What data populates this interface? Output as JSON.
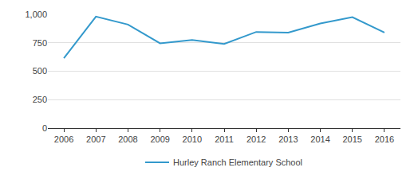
{
  "chart_data": {
    "type": "line",
    "categories": [
      "2006",
      "2007",
      "2008",
      "2009",
      "2010",
      "2011",
      "2012",
      "2013",
      "2014",
      "2015",
      "2016"
    ],
    "series": [
      {
        "name": "Hurley Ranch Elementary School",
        "color": "#3399cc",
        "values": [
          615,
          980,
          910,
          745,
          775,
          740,
          845,
          840,
          920,
          975,
          840
        ]
      }
    ],
    "ylim": [
      0,
      1000
    ],
    "yticks": [
      0,
      250,
      500,
      750,
      {
        "value": 1000,
        "label": "1,000"
      }
    ],
    "grid": true,
    "legend": "bottom"
  }
}
